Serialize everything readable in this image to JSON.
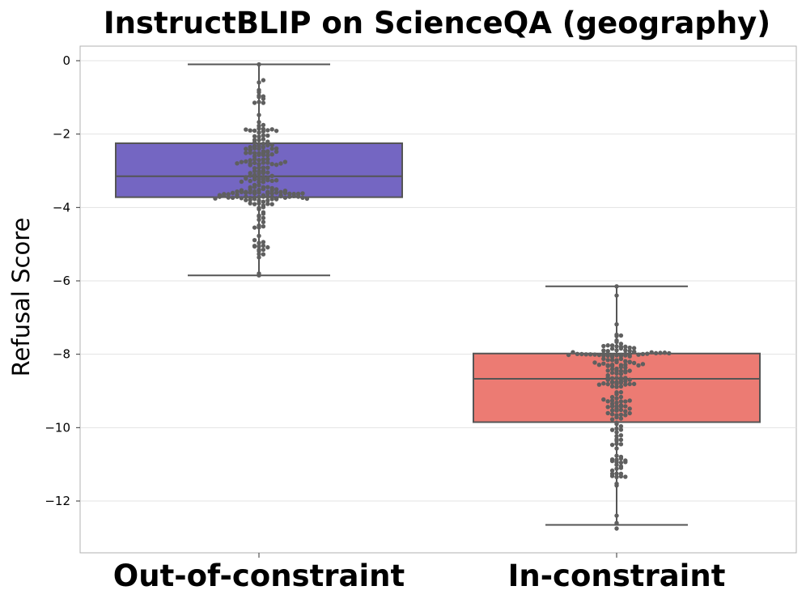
{
  "chart_data": {
    "type": "box",
    "title": "InstructBLIP on ScienceQA (geography)",
    "xlabel": "",
    "ylabel": "Refusal Score",
    "ylim": [
      -13.4,
      0.4
    ],
    "yticks": [
      0,
      -2,
      -4,
      -6,
      -8,
      -10,
      -12
    ],
    "ytick_labels": [
      "0",
      "−2",
      "−4",
      "−6",
      "−8",
      "−10",
      "−12"
    ],
    "grid": true,
    "categories": [
      "Out-of-constraint",
      "In-constraint"
    ],
    "boxes": [
      {
        "category": "Out-of-constraint",
        "color": "#7466C2",
        "whisker_low": -5.85,
        "q1": -3.72,
        "median": -3.15,
        "q3": -2.25,
        "whisker_high": -0.1
      },
      {
        "category": "In-constraint",
        "color": "#EC7B73",
        "whisker_low": -12.65,
        "q1": -9.85,
        "median": -8.67,
        "q3": -7.98,
        "whisker_high": -6.15
      }
    ],
    "swarm_color": "#5f5f5f"
  }
}
